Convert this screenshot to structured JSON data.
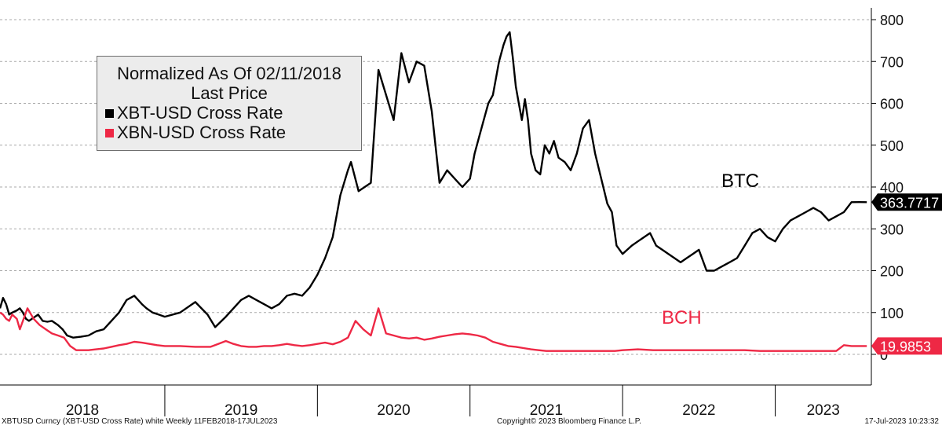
{
  "legend": {
    "title_line1": "Normalized As Of 02/11/2018",
    "title_line2": "Last Price",
    "items": [
      {
        "label": "XBT-USD Cross Rate",
        "color": "#000000"
      },
      {
        "label": "XBN-USD Cross Rate",
        "color": "#ee2845"
      }
    ]
  },
  "annotations": {
    "btc": "BTC",
    "bch": "BCH"
  },
  "footer": {
    "left": "XBTUSD Curncy (XBT-USD Cross Rate) white  Weekly 11FEB2018-17JUL2023",
    "center": "Copyright© 2023 Bloomberg Finance L.P.",
    "right": "17-Jul-2023 10:23:32"
  },
  "colors": {
    "btc": "#000000",
    "bch": "#ee2845",
    "grid": "#a8a8a8"
  },
  "chart_data": {
    "type": "line",
    "title": "",
    "xlabel": "",
    "ylabel": "",
    "ylim": [
      -20,
      810
    ],
    "y_ticks": [
      0,
      100,
      200,
      300,
      400,
      500,
      600,
      700,
      800
    ],
    "y_tick_labels": [
      "0",
      "100",
      "200",
      "300",
      "400",
      "500",
      "600",
      "700",
      "800"
    ],
    "x_range": [
      2017.92,
      2023.63
    ],
    "year_labels": [
      "2018",
      "2019",
      "2020",
      "2021",
      "2022",
      "2023"
    ],
    "year_boundaries": [
      2019,
      2020,
      2021,
      2022,
      2023
    ],
    "grid": "horizontal dashed",
    "legend_position": "top-left",
    "last_value_labels": [
      {
        "series": "XBT-USD Cross Rate",
        "value": "363.7717"
      },
      {
        "series": "XBN-USD Cross Rate",
        "value": "19.9853"
      }
    ],
    "series": [
      {
        "name": "XBT-USD Cross Rate",
        "x": [
          2017.92,
          2017.94,
          2017.96,
          2017.98,
          2018.0,
          2018.03,
          2018.05,
          2018.07,
          2018.09,
          2018.11,
          2018.13,
          2018.17,
          2018.2,
          2018.23,
          2018.26,
          2018.3,
          2018.33,
          2018.36,
          2018.4,
          2018.45,
          2018.5,
          2018.55,
          2018.6,
          2018.65,
          2018.7,
          2018.75,
          2018.8,
          2018.85,
          2018.88,
          2018.92,
          2018.96,
          2019.0,
          2019.1,
          2019.2,
          2019.28,
          2019.33,
          2019.4,
          2019.45,
          2019.5,
          2019.55,
          2019.6,
          2019.65,
          2019.7,
          2019.75,
          2019.8,
          2019.85,
          2019.9,
          2019.95,
          2020.0,
          2020.05,
          2020.1,
          2020.15,
          2020.2,
          2020.22,
          2020.27,
          2020.35,
          2020.4,
          2020.5,
          2020.55,
          2020.6,
          2020.65,
          2020.7,
          2020.75,
          2020.8,
          2020.85,
          2020.9,
          2020.95,
          2021.0,
          2021.03,
          2021.06,
          2021.09,
          2021.12,
          2021.15,
          2021.17,
          2021.19,
          2021.22,
          2021.24,
          2021.26,
          2021.28,
          2021.3,
          2021.32,
          2021.34,
          2021.36,
          2021.38,
          2021.4,
          2021.43,
          2021.46,
          2021.49,
          2021.52,
          2021.55,
          2021.58,
          2021.62,
          2021.66,
          2021.7,
          2021.74,
          2021.78,
          2021.82,
          2021.86,
          2021.88,
          2021.9,
          2021.93,
          2021.96,
          2022.0,
          2022.03,
          2022.06,
          2022.1,
          2022.14,
          2022.18,
          2022.22,
          2022.26,
          2022.3,
          2022.34,
          2022.38,
          2022.42,
          2022.46,
          2022.5,
          2022.55,
          2022.6,
          2022.65,
          2022.7,
          2022.75,
          2022.8,
          2022.85,
          2022.9,
          2022.95,
          2023.0,
          2023.05,
          2023.1,
          2023.15,
          2023.2,
          2023.25,
          2023.3,
          2023.35,
          2023.4,
          2023.45,
          2023.5,
          2023.55,
          2023.6
        ],
        "y": [
          110,
          135,
          120,
          95,
          100,
          105,
          110,
          100,
          85,
          80,
          85,
          95,
          80,
          78,
          80,
          70,
          60,
          45,
          40,
          42,
          45,
          55,
          60,
          80,
          100,
          130,
          140,
          120,
          110,
          100,
          95,
          90,
          100,
          125,
          95,
          65,
          90,
          110,
          130,
          140,
          130,
          120,
          110,
          120,
          140,
          145,
          140,
          160,
          190,
          230,
          280,
          380,
          440,
          460,
          390,
          410,
          680,
          560,
          720,
          650,
          700,
          690,
          580,
          410,
          440,
          420,
          400,
          420,
          480,
          520,
          560,
          600,
          620,
          660,
          700,
          740,
          760,
          770,
          710,
          640,
          600,
          560,
          610,
          560,
          480,
          440,
          430,
          500,
          480,
          510,
          470,
          460,
          440,
          480,
          540,
          560,
          480,
          420,
          390,
          360,
          340,
          260,
          240,
          250,
          260,
          270,
          280,
          290,
          260,
          250,
          240,
          230,
          220,
          230,
          240,
          250,
          200,
          200,
          210,
          220,
          230,
          260,
          290,
          300,
          280,
          270,
          300,
          320,
          330,
          340,
          350,
          340,
          320,
          330,
          340,
          363.77,
          364,
          363.77
        ]
      },
      {
        "name": "XBN-USD Cross Rate",
        "x": [
          2017.92,
          2017.94,
          2017.96,
          2017.98,
          2018.0,
          2018.03,
          2018.05,
          2018.07,
          2018.1,
          2018.14,
          2018.18,
          2018.22,
          2018.26,
          2018.3,
          2018.34,
          2018.38,
          2018.42,
          2018.46,
          2018.5,
          2018.55,
          2018.6,
          2018.65,
          2018.7,
          2018.75,
          2018.8,
          2018.85,
          2018.9,
          2018.95,
          2019.0,
          2019.1,
          2019.2,
          2019.3,
          2019.35,
          2019.4,
          2019.45,
          2019.5,
          2019.55,
          2019.6,
          2019.65,
          2019.7,
          2019.75,
          2019.8,
          2019.85,
          2019.9,
          2019.95,
          2020.0,
          2020.05,
          2020.1,
          2020.15,
          2020.2,
          2020.25,
          2020.3,
          2020.35,
          2020.4,
          2020.45,
          2020.5,
          2020.55,
          2020.6,
          2020.65,
          2020.7,
          2020.75,
          2020.8,
          2020.85,
          2020.9,
          2020.95,
          2021.0,
          2021.05,
          2021.1,
          2021.15,
          2021.2,
          2021.25,
          2021.3,
          2021.35,
          2021.4,
          2021.45,
          2021.5,
          2021.55,
          2021.6,
          2021.65,
          2021.7,
          2021.75,
          2021.8,
          2021.85,
          2021.9,
          2021.95,
          2022.0,
          2022.1,
          2022.2,
          2022.3,
          2022.4,
          2022.5,
          2022.6,
          2022.7,
          2022.8,
          2022.9,
          2023.0,
          2023.1,
          2023.2,
          2023.3,
          2023.4,
          2023.45,
          2023.5,
          2023.55,
          2023.6
        ],
        "y": [
          100,
          95,
          85,
          80,
          95,
          85,
          60,
          80,
          110,
          85,
          70,
          60,
          50,
          45,
          40,
          20,
          10,
          10,
          10,
          12,
          14,
          18,
          22,
          25,
          30,
          28,
          25,
          22,
          20,
          20,
          18,
          18,
          25,
          32,
          25,
          20,
          18,
          18,
          20,
          20,
          22,
          25,
          22,
          20,
          22,
          25,
          28,
          24,
          30,
          40,
          80,
          60,
          45,
          110,
          50,
          45,
          40,
          38,
          40,
          35,
          38,
          42,
          45,
          48,
          50,
          48,
          45,
          40,
          30,
          25,
          20,
          18,
          15,
          12,
          10,
          8,
          8,
          8,
          8,
          8,
          8,
          8,
          8,
          8,
          8,
          10,
          12,
          10,
          10,
          10,
          10,
          10,
          10,
          10,
          8,
          8,
          8,
          8,
          8,
          8,
          22,
          20,
          19.99,
          19.99
        ]
      }
    ]
  }
}
